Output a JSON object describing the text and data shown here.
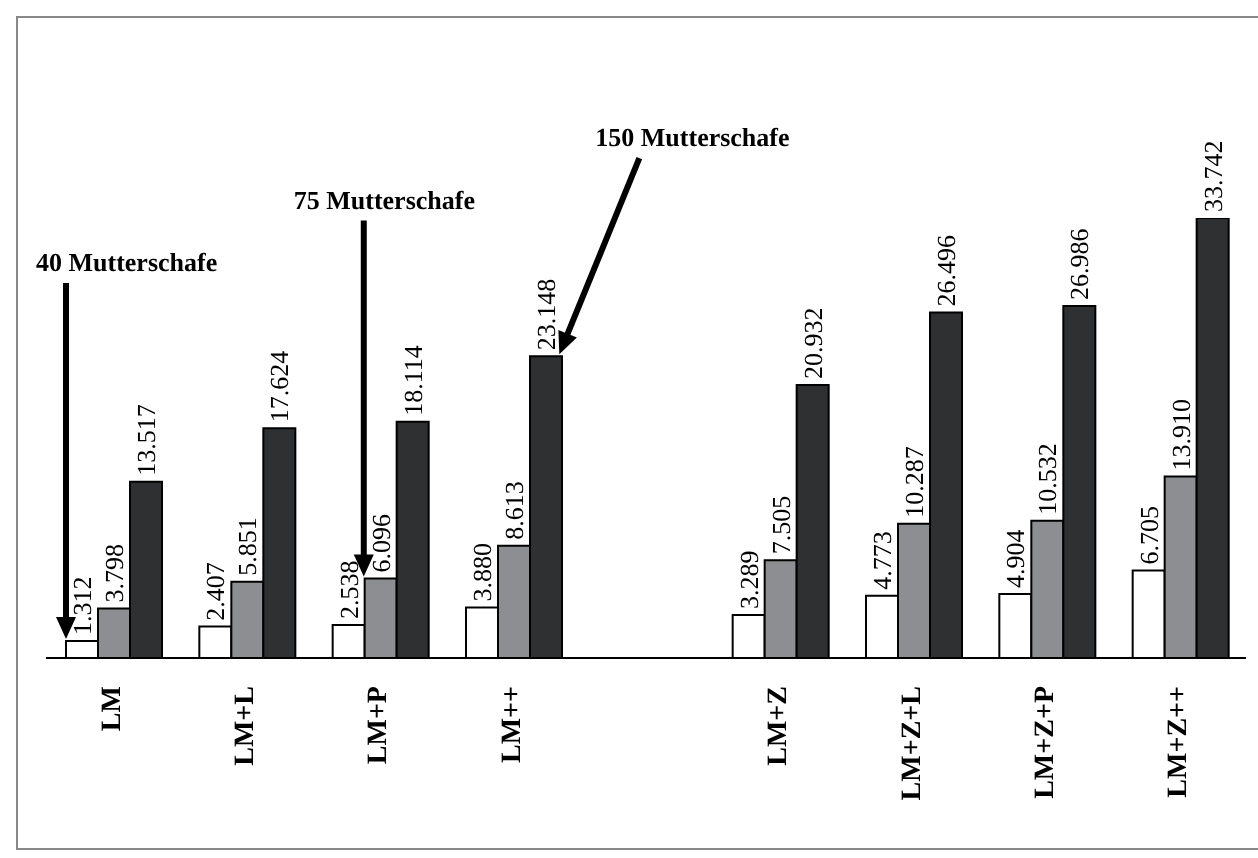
{
  "chart_data": {
    "type": "bar",
    "categories": [
      "LM",
      "LM+L",
      "LM+P",
      "LM++",
      null,
      "LM+Z",
      "LM+Z+L",
      "LM+Z+P",
      "LM+Z++"
    ],
    "series": [
      {
        "color": "#ffffff",
        "values": [
          1.312,
          2.407,
          2.538,
          3.88,
          null,
          3.289,
          4.773,
          4.904,
          6.705
        ],
        "value_labels": [
          "1.312",
          "2.407",
          "2.538",
          "3.880",
          null,
          "3.289",
          "4.773",
          "4.904",
          "6.705"
        ]
      },
      {
        "color": "#8c8e91",
        "values": [
          3.798,
          5.851,
          6.096,
          8.613,
          null,
          7.505,
          10.287,
          10.532,
          13.91
        ],
        "value_labels": [
          "3.798",
          "5.851",
          "6.096",
          "8.613",
          null,
          "7.505",
          "10.287",
          "10.532",
          "13.910"
        ]
      },
      {
        "color": "#2f3032",
        "values": [
          13.517,
          17.624,
          18.114,
          23.148,
          null,
          20.932,
          26.496,
          26.986,
          33.742
        ],
        "value_labels": [
          "13.517",
          "17.624",
          "18.114",
          "23.148",
          null,
          "20.932",
          "26.496",
          "26.986",
          "33.742"
        ]
      }
    ],
    "tick_labels": "x",
    "grid": false,
    "legend": false,
    "annotations": [
      "40 Mutterschafe",
      "75 Mutterschafe",
      "150 Mutterschafe"
    ]
  }
}
